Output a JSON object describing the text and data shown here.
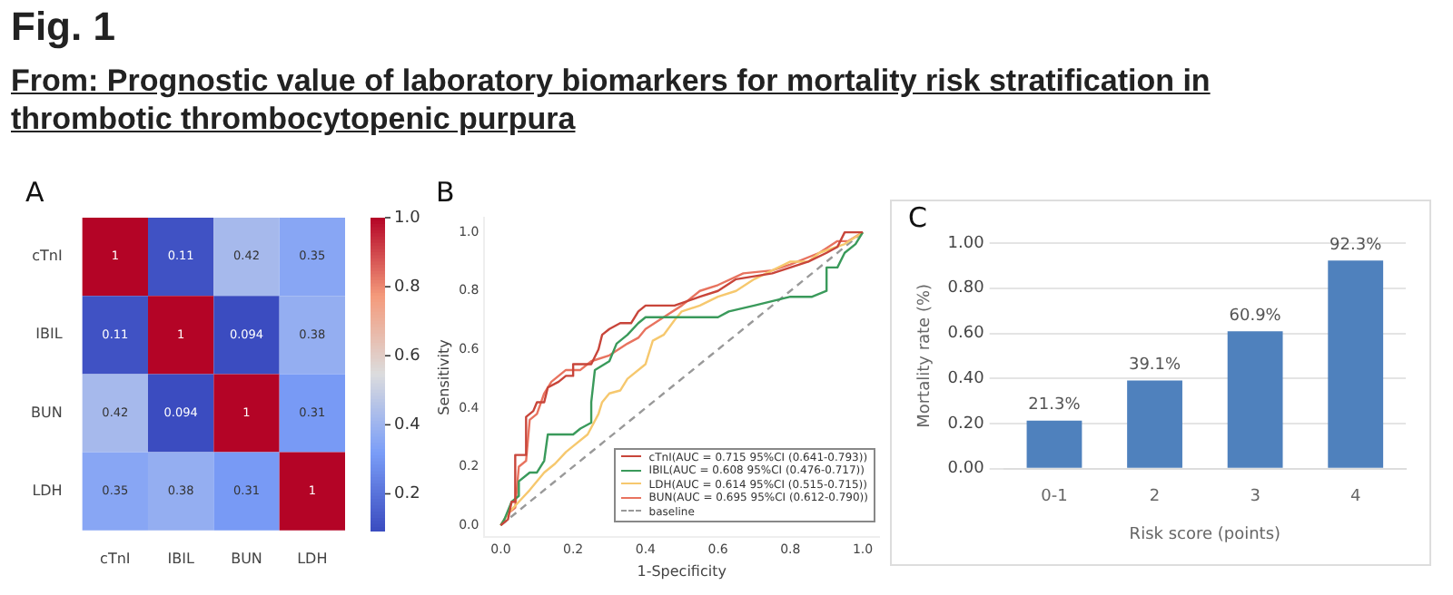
{
  "chart_data": [
    {
      "type": "heatmap",
      "title": "A",
      "annotations": [
        "Fig. 1",
        "From: Prognostic value of laboratory biomarkers for mortality risk stratification in thrombotic thrombocytopenic purpura"
      ],
      "categories": [
        "cTnI",
        "IBIL",
        "BUN",
        "LDH"
      ],
      "y_categories": [
        "cTnI",
        "IBIL",
        "BUN",
        "LDH"
      ],
      "cells": [
        [
          1,
          0.11,
          0.42,
          0.35
        ],
        [
          0.11,
          1,
          0.094,
          0.38
        ],
        [
          0.42,
          0.094,
          1,
          0.31
        ],
        [
          0.35,
          0.38,
          0.31,
          1
        ]
      ],
      "clim": [
        0.094,
        1.0
      ],
      "cticks": [
        0.2,
        0.4,
        0.6,
        0.8,
        {
          "value": 1.0,
          "label": "1.0"
        }
      ],
      "data_labels": true
    },
    {
      "type": "line",
      "title": "B",
      "xlabel": "1-Specificity",
      "ylabel": "Sensitivity",
      "xlim": [
        -0.045,
        1.045
      ],
      "ylim": [
        -0.04,
        1.05
      ],
      "xticks": [
        {
          "value": 0,
          "label": "0.0"
        },
        {
          "value": 0.2,
          "label": "0.2"
        },
        {
          "value": 0.4,
          "label": "0.4"
        },
        {
          "value": 0.6,
          "label": "0.6"
        },
        {
          "value": 0.8,
          "label": "0.8"
        },
        {
          "value": 1,
          "label": "1.0"
        }
      ],
      "yticks": [
        {
          "value": 0,
          "label": "0.0"
        },
        {
          "value": 0.2,
          "label": "0.2"
        },
        {
          "value": 0.4,
          "label": "0.4"
        },
        {
          "value": 0.6,
          "label": "0.6"
        },
        {
          "value": 0.8,
          "label": "0.8"
        },
        {
          "value": 1,
          "label": "1.0"
        }
      ],
      "grid": false,
      "legend": "bottom right",
      "marker": "none",
      "series": [
        {
          "name": "cTnI(AUC = 0.715 95%CI (0.641-0.793))",
          "color": "#c8453a",
          "x": [
            0,
            0.02,
            0.03,
            0.04,
            0.04,
            0.07,
            0.07,
            0.09,
            0.1,
            0.12,
            0.13,
            0.16,
            0.18,
            0.2,
            0.2,
            0.25,
            0.27,
            0.28,
            0.3,
            0.33,
            0.36,
            0.38,
            0.4,
            0.48,
            0.55,
            0.6,
            0.65,
            0.7,
            0.75,
            0.8,
            0.85,
            0.9,
            0.93,
            0.95,
            0.98,
            1
          ],
          "values": [
            0,
            0.02,
            0.08,
            0.08,
            0.24,
            0.24,
            0.37,
            0.39,
            0.42,
            0.42,
            0.47,
            0.49,
            0.51,
            0.51,
            0.55,
            0.55,
            0.6,
            0.65,
            0.67,
            0.69,
            0.69,
            0.73,
            0.75,
            0.75,
            0.78,
            0.8,
            0.84,
            0.85,
            0.86,
            0.88,
            0.9,
            0.93,
            0.95,
            1,
            1,
            1
          ]
        },
        {
          "name": "IBIL(AUC = 0.608 95%CI (0.476-0.717))",
          "color": "#3a9a5b",
          "x": [
            0,
            0.01,
            0.03,
            0.05,
            0.05,
            0.08,
            0.1,
            0.12,
            0.13,
            0.2,
            0.22,
            0.25,
            0.25,
            0.26,
            0.3,
            0.32,
            0.35,
            0.38,
            0.4,
            0.5,
            0.6,
            0.63,
            0.7,
            0.8,
            0.86,
            0.9,
            0.9,
            0.93,
            0.95,
            0.98,
            1
          ],
          "values": [
            0,
            0.02,
            0.08,
            0.1,
            0.15,
            0.18,
            0.18,
            0.22,
            0.31,
            0.31,
            0.33,
            0.35,
            0.42,
            0.53,
            0.56,
            0.62,
            0.65,
            0.69,
            0.71,
            0.71,
            0.71,
            0.73,
            0.75,
            0.78,
            0.78,
            0.8,
            0.88,
            0.88,
            0.93,
            0.96,
            1
          ]
        },
        {
          "name": "LDH(AUC = 0.614 95%CI (0.515-0.715))",
          "color": "#f6c86e",
          "x": [
            0,
            0.02,
            0.05,
            0.08,
            0.12,
            0.15,
            0.18,
            0.2,
            0.24,
            0.27,
            0.28,
            0.3,
            0.33,
            0.35,
            0.4,
            0.42,
            0.45,
            0.48,
            0.5,
            0.55,
            0.6,
            0.65,
            0.7,
            0.75,
            0.8,
            0.85,
            0.88,
            0.95,
            1
          ],
          "values": [
            0,
            0.04,
            0.08,
            0.12,
            0.18,
            0.21,
            0.25,
            0.27,
            0.31,
            0.38,
            0.42,
            0.45,
            0.46,
            0.5,
            0.55,
            0.63,
            0.65,
            0.7,
            0.73,
            0.75,
            0.78,
            0.8,
            0.84,
            0.87,
            0.9,
            0.9,
            0.93,
            0.96,
            1
          ]
        },
        {
          "name": "BUN(AUC = 0.695 95%CI (0.612-0.790))",
          "color": "#e8735f",
          "x": [
            0,
            0.02,
            0.04,
            0.05,
            0.07,
            0.08,
            0.1,
            0.12,
            0.14,
            0.18,
            0.22,
            0.25,
            0.3,
            0.35,
            0.38,
            0.4,
            0.45,
            0.5,
            0.55,
            0.6,
            0.67,
            0.75,
            0.8,
            0.88,
            0.93,
            0.96,
            1
          ],
          "values": [
            0,
            0.04,
            0.06,
            0.2,
            0.22,
            0.36,
            0.38,
            0.45,
            0.49,
            0.53,
            0.53,
            0.56,
            0.58,
            0.62,
            0.64,
            0.67,
            0.71,
            0.75,
            0.8,
            0.82,
            0.86,
            0.87,
            0.89,
            0.93,
            0.97,
            0.97,
            1
          ]
        },
        {
          "name": "baseline",
          "color": "#999999",
          "line_style": "dashed",
          "x": [
            0,
            1
          ],
          "values": [
            0,
            1
          ]
        }
      ]
    },
    {
      "type": "bar",
      "title": "C",
      "xlabel": "Risk score (points)",
      "ylabel": "Mortality rate (%)",
      "categories": [
        "0-1",
        "2",
        "3",
        "4"
      ],
      "values": [
        0.213,
        0.391,
        0.609,
        0.923
      ],
      "value_labels": [
        "21.3%",
        "39.1%",
        "60.9%",
        "92.3%"
      ],
      "color": "#4f81bd",
      "ylim": [
        0,
        1
      ],
      "yticks": [
        {
          "value": 0,
          "label": "0.00"
        },
        {
          "value": 0.2,
          "label": "0.20"
        },
        {
          "value": 0.4,
          "label": "0.40"
        },
        {
          "value": 0.6,
          "label": "0.60"
        },
        {
          "value": 0.8,
          "label": "0.80"
        },
        {
          "value": 1,
          "label": "1.00"
        }
      ],
      "grid": "y"
    }
  ]
}
